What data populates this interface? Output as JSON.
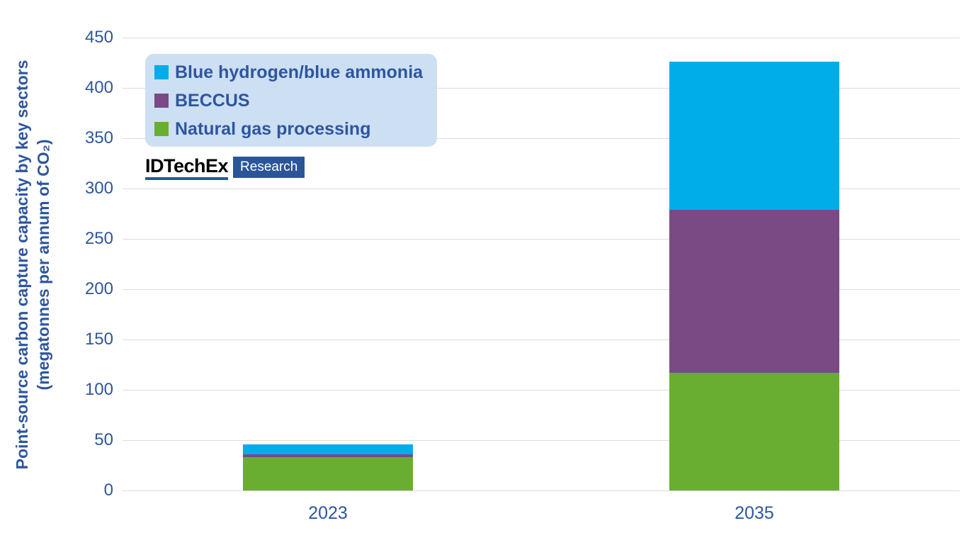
{
  "chart_data": {
    "type": "bar",
    "stacked": true,
    "categories": [
      "2023",
      "2035"
    ],
    "series": [
      {
        "name": "Blue hydrogen/blue ammonia",
        "color": "#00ADE9",
        "values": [
          10,
          147
        ]
      },
      {
        "name": "BECCUS",
        "color": "#7A4A85",
        "values": [
          3,
          162
        ]
      },
      {
        "name": "Natural gas processing",
        "color": "#69AE30",
        "values": [
          33,
          117
        ]
      }
    ],
    "stack_order_bottom_to_top": [
      "Natural gas processing",
      "BECCUS",
      "Blue hydrogen/blue ammonia"
    ],
    "totals": {
      "2023": 46,
      "2035": 426
    },
    "ylabel": "Point-source carbon capture capacity by key sectors (megatonnes per annum of CO₂)",
    "ylabel_lines": [
      "Point-source carbon capture capacity by key sectors",
      "(megatonnes per annum of CO₂)"
    ],
    "xlabel": "",
    "title": "",
    "ylim": [
      0,
      450
    ],
    "yticks": [
      0,
      50,
      100,
      150,
      200,
      250,
      300,
      350,
      400,
      450
    ],
    "grid": true,
    "legend_position": "top-left"
  },
  "logo": {
    "brand": "IDTechEx",
    "badge": "Research"
  },
  "style": {
    "axis_text_color": "#2E569E",
    "gridline_color": "#DBDBDB",
    "legend_bg_color": "#CDDFF3",
    "badge_bg_color": "#2B5597",
    "background_color": "#FFFFFF"
  }
}
